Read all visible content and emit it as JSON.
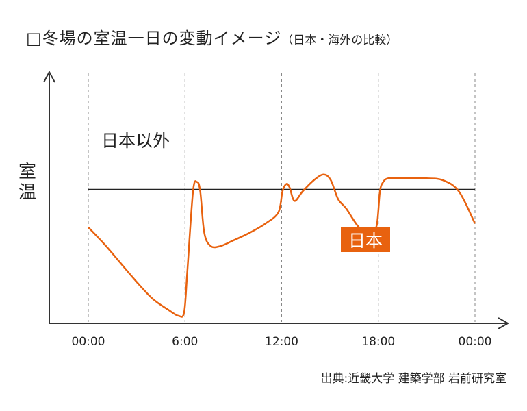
{
  "title": {
    "box": "□",
    "main": "冬場の室温一日の変動イメージ",
    "sub": "（日本・海外の比較）"
  },
  "source": "出典:近畿大学 建築学部 岩前研究室",
  "chart_data": {
    "type": "line",
    "ylabel": [
      "室",
      "温"
    ],
    "xlabel": "",
    "x_ticks": [
      "00:00",
      "6:00",
      "12:00",
      "18:00",
      "00:00"
    ],
    "x_tick_hours": [
      0,
      6,
      12,
      18,
      24
    ],
    "xlim": [
      0,
      24
    ],
    "ylim": [
      0,
      100
    ],
    "y_ticks_shown": false,
    "grid": "vertical dashed lines at each x tick",
    "series": [
      {
        "name": "日本以外",
        "color": "#222222",
        "x": [
          0,
          24
        ],
        "y": [
          63,
          63
        ]
      },
      {
        "name": "日本",
        "color": "#e8620f",
        "label_style": "filled-box",
        "x": [
          0,
          1,
          2,
          3,
          4,
          5,
          5.6,
          5.95,
          6.15,
          6.5,
          6.75,
          6.95,
          7.2,
          7.6,
          8.2,
          9,
          10,
          11,
          11.8,
          12.05,
          12.3,
          12.5,
          12.8,
          13.3,
          14,
          14.6,
          15.05,
          15.5,
          16,
          16.8,
          17.5,
          17.9,
          18.1,
          18.3,
          18.6,
          19.2,
          20,
          21,
          22,
          23,
          24
        ],
        "y": [
          43,
          34,
          24,
          14,
          5,
          -1,
          -4,
          -2,
          20,
          62,
          67,
          62,
          40,
          33,
          33,
          36,
          40,
          45,
          51,
          62,
          66,
          64,
          57,
          62,
          68,
          71,
          68,
          58,
          53,
          43,
          40,
          44,
          62,
          67,
          69,
          69,
          69,
          69,
          68,
          62,
          45
        ]
      }
    ]
  }
}
